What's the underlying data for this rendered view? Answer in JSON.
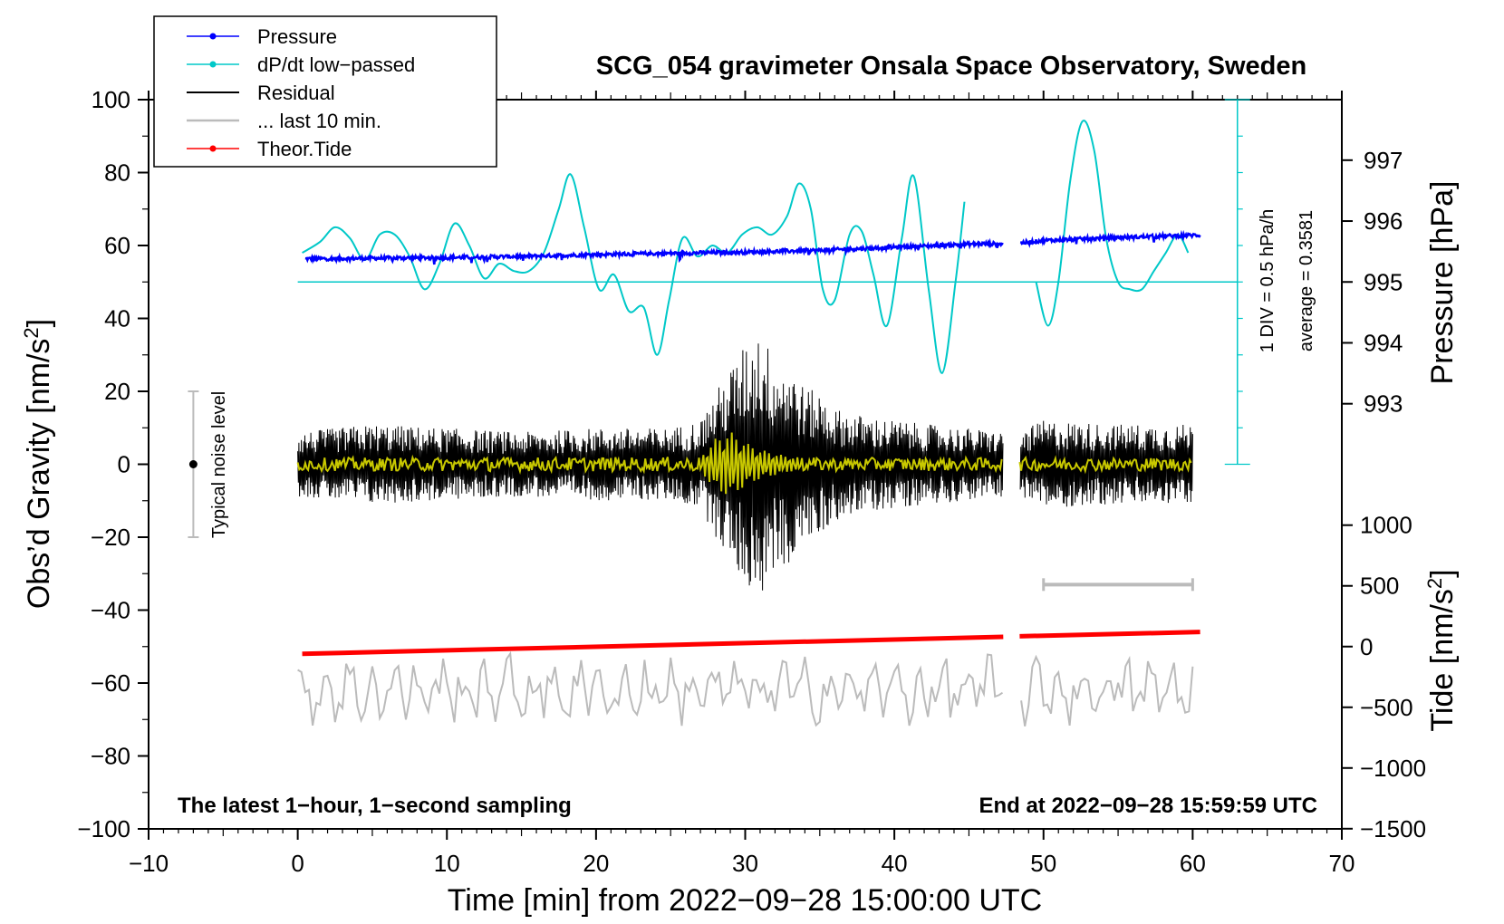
{
  "chart_data": {
    "type": "line",
    "title": "SCG_054 gravimeter Onsala Space Observatory, Sweden",
    "xlabel": "Time [min] from 2022−09−28 15:00:00 UTC",
    "ylabel_left": "Obs’d Gravity [nm/s",
    "ylabel_left_sup": "2",
    "ylabel_left_tail": "]",
    "ylabel_right_pressure": "Pressure [hPa]",
    "ylabel_right_tide": "Tide [nm/s",
    "ylabel_right_tide_sup": "2",
    "ylabel_right_tide_tail": "]",
    "xlim": [
      -10,
      70
    ],
    "ylim_left": [
      -100,
      100
    ],
    "x_ticks": [
      -10,
      0,
      10,
      20,
      30,
      40,
      50,
      60,
      70
    ],
    "x_tick_labels": [
      "−10",
      "0",
      "10",
      "20",
      "30",
      "40",
      "50",
      "60",
      "70"
    ],
    "y_left_ticks": [
      -100,
      -80,
      -60,
      -40,
      -20,
      0,
      20,
      40,
      60,
      80,
      100
    ],
    "y_left_tick_labels": [
      "−100",
      "−80",
      "−60",
      "−40",
      "−20",
      "0",
      "20",
      "40",
      "60",
      "80",
      "100"
    ],
    "pressure_axis": {
      "ticks": [
        993,
        994,
        995,
        996,
        997
      ],
      "tick_labels": [
        "993",
        "994",
        "995",
        "996",
        "997"
      ],
      "ref_value": 995,
      "ref_gravity": 50,
      "gravity_per_hpa": 16.7
    },
    "tide_axis": {
      "ticks": [
        1000,
        500,
        0,
        -500,
        -1000,
        -1500
      ],
      "tick_labels": [
        "1000",
        "500",
        "0",
        "−500",
        "−1000",
        "−1500"
      ],
      "ref_value": 0,
      "ref_gravity": -50,
      "gravity_per_unit": 0.0333
    },
    "legend": [
      {
        "label": "Pressure",
        "color": "#0000ff",
        "marker": true
      },
      {
        "label": "dP/dt low−passed",
        "color": "#00c8c8",
        "marker": true
      },
      {
        "label": "Residual",
        "color": "#000000",
        "marker": false
      },
      {
        "label": "... last 10 min.",
        "color": "#bbbbbb",
        "marker": false
      },
      {
        "label": "Theor.Tide",
        "color": "#ff0000",
        "marker": true
      }
    ],
    "annotations": {
      "noise_label": "Typical noise level",
      "dpdt_scale": "1 DIV = 0.5 hPa/h",
      "dpdt_average": "average = 0.3581",
      "bottom_left": "The latest 1−hour, 1−second sampling",
      "bottom_right": "End at 2022−09−28 15:59:59 UTC"
    },
    "noise_level": {
      "x": -7,
      "center": 0,
      "range": [
        -20,
        20
      ]
    },
    "last10_bar": {
      "x_range": [
        50,
        60
      ],
      "y": -33
    },
    "dpdt_scale_bar": {
      "x": 63,
      "y_range": [
        0,
        100
      ],
      "zero_line": 50
    },
    "gap_minutes": [
      47.3,
      48.4
    ],
    "series": [
      {
        "name": "Pressure",
        "color": "#0000ff",
        "unit": "hPa",
        "x": [
          0.5,
          5,
          10,
          15,
          20,
          25,
          30,
          35,
          40,
          45,
          47.3,
          48.4,
          50,
          55,
          60.5
        ],
        "values": [
          995.38,
          995.39,
          995.4,
          995.42,
          995.45,
          995.47,
          995.49,
          995.52,
          995.57,
          995.62,
          995.63,
          995.64,
          995.68,
          995.73,
          995.77
        ]
      },
      {
        "name": "dP/dt low-passed",
        "color": "#00c8c8",
        "unit": "nm/s2 display",
        "x": [
          0.3,
          1.5,
          2.5,
          3.5,
          4.5,
          5.5,
          6.5,
          7.5,
          8.5,
          9.5,
          10.5,
          11.5,
          12.5,
          13.5,
          14.5,
          15.5,
          16.5,
          17.5,
          18.3,
          19.2,
          20.2,
          21.2,
          22.2,
          23.2,
          24.1,
          24.9,
          25.8,
          26.8,
          27.8,
          28.8,
          29.8,
          30.8,
          31.8,
          32.8,
          33.6,
          34.4,
          35.2,
          36.0,
          37.0,
          37.8,
          38.6,
          39.5,
          40.5,
          41.3,
          42.3,
          43.2,
          44.1,
          44.7
        ],
        "values": [
          58,
          61,
          65,
          62,
          56,
          63,
          63,
          57,
          48,
          55,
          66,
          60,
          51,
          55,
          53,
          53,
          58,
          70,
          79.5,
          65,
          48,
          52,
          42,
          43,
          30,
          45,
          62,
          57,
          60,
          58,
          63,
          65,
          63,
          68,
          77,
          70,
          48,
          45,
          63,
          64,
          52,
          38,
          62,
          79,
          48,
          25,
          50,
          72
        ]
      },
      {
        "name": "dP/dt low-passed (after gap)",
        "color": "#00c8c8",
        "unit": "nm/s2 display",
        "x": [
          49.5,
          50.3,
          51.0,
          51.8,
          52.6,
          53.4,
          54.2,
          55.0,
          55.8,
          56.6,
          57.4,
          58.2,
          59.0,
          59.7
        ],
        "values": [
          50,
          38,
          50,
          78,
          94,
          86,
          62,
          50,
          48,
          48,
          53,
          58,
          63,
          58
        ]
      },
      {
        "name": "Theor.Tide",
        "color": "#ff0000",
        "unit": "nm/s2",
        "x": [
          0.3,
          47.3,
          48.4,
          60.5
        ],
        "values": [
          -60,
          80,
          85,
          120
        ]
      },
      {
        "name": "Residual envelope",
        "color": "#000000",
        "unit": "nm/s2",
        "x": [
          0,
          5,
          10,
          15,
          20,
          25,
          27,
          28,
          29,
          30,
          31,
          32,
          33,
          34,
          35,
          36,
          38,
          40,
          42,
          45,
          47.3,
          48.4,
          50,
          55,
          60
        ],
        "values": [
          8,
          10,
          9,
          8,
          9,
          9,
          11,
          18,
          24,
          30,
          34,
          26,
          25,
          19,
          18,
          14,
          12,
          11,
          10,
          9,
          8,
          8,
          11,
          10,
          10
        ]
      },
      {
        "name": "Smoothed residual envelope",
        "color": "#c8c800",
        "unit": "nm/s2",
        "x": [
          0,
          27,
          28,
          29,
          30,
          31,
          32,
          33,
          34,
          60
        ],
        "values": [
          1.8,
          2,
          7,
          9,
          6,
          4,
          3,
          2,
          1.8,
          1.8
        ]
      },
      {
        "name": "... last 10 min. (offset -62)",
        "color": "#bbbbbb",
        "unit": "nm/s2",
        "x": [
          0,
          60
        ],
        "values": [
          -62,
          -62
        ]
      }
    ]
  }
}
